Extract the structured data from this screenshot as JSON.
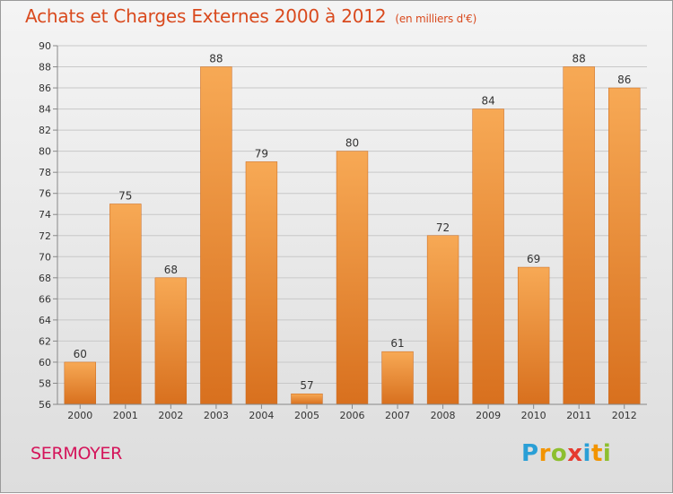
{
  "header": {
    "title": "Achats et Charges Externes 2000 à 2012",
    "unit": "(en milliers d'€)"
  },
  "footer": {
    "commune": "SERMOYER",
    "logo_letters": [
      "P",
      "r",
      "o",
      "x",
      "i",
      "t",
      "i"
    ],
    "logo_colors": [
      "#2a9fd6",
      "#f29400",
      "#8dbf2f",
      "#e63a2f",
      "#2a9fd6",
      "#f29400",
      "#8dbf2f"
    ]
  },
  "chart_data": {
    "type": "bar",
    "title": "Achats et Charges Externes 2000 à 2012",
    "subtitle": "(en milliers d'€)",
    "categories": [
      "2000",
      "2001",
      "2002",
      "2003",
      "2004",
      "2005",
      "2006",
      "2007",
      "2008",
      "2009",
      "2010",
      "2011",
      "2012"
    ],
    "values": [
      60,
      75,
      68,
      88,
      79,
      57,
      80,
      61,
      72,
      84,
      69,
      88,
      86
    ],
    "ylim": [
      56,
      90
    ],
    "yticks": [
      56,
      58,
      60,
      62,
      64,
      66,
      68,
      70,
      72,
      74,
      76,
      78,
      80,
      82,
      84,
      86,
      88,
      90
    ],
    "grid": true,
    "bar_color": "#f0913a",
    "bar_color_light": "#f7a955",
    "bar_color_dark": "#d8701e"
  }
}
